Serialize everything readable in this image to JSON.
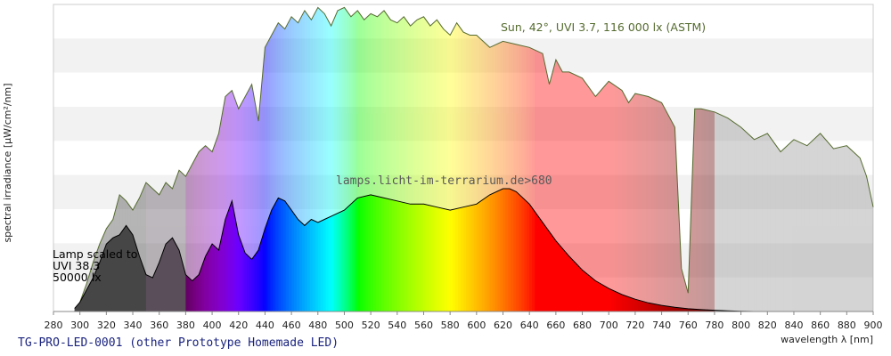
{
  "chart_data": {
    "type": "area",
    "title": "TG-PRO-LED-0001 (other Prototype Homemade LED)",
    "xlabel": "wavelength λ [nm]",
    "ylabel": "spectral irradiance [µW/cm²/nm]",
    "xlim": [
      280,
      900
    ],
    "ylim": [
      0,
      1
    ],
    "x_ticks": [
      280,
      300,
      320,
      340,
      360,
      380,
      400,
      420,
      440,
      460,
      480,
      500,
      520,
      540,
      560,
      580,
      600,
      620,
      640,
      660,
      680,
      700,
      720,
      740,
      760,
      780,
      800,
      820,
      840,
      860,
      880,
      900
    ],
    "grid": "horizontal bands",
    "annotations": {
      "sun": "Sun, 42°, UVI 3.7, 116 000 lx (ASTM)",
      "source": "lamps.licht-im-terrarium.de>680",
      "lamp_line1": "Lamp scaled to",
      "lamp_line2": "UVI 38.3",
      "lamp_line3": "50000 lx"
    },
    "series": [
      {
        "name": "Sun, 42°, UVI 3.7, 116 000 lx (ASTM)",
        "x": [
          296,
          300,
          305,
          310,
          315,
          320,
          325,
          330,
          335,
          340,
          345,
          350,
          355,
          360,
          365,
          370,
          375,
          380,
          385,
          390,
          395,
          400,
          405,
          410,
          415,
          420,
          425,
          430,
          435,
          440,
          445,
          450,
          455,
          460,
          465,
          470,
          475,
          480,
          485,
          490,
          495,
          500,
          505,
          510,
          515,
          520,
          525,
          530,
          535,
          540,
          545,
          550,
          555,
          560,
          565,
          570,
          575,
          580,
          585,
          590,
          595,
          600,
          610,
          620,
          630,
          640,
          650,
          655,
          660,
          665,
          670,
          680,
          690,
          700,
          710,
          715,
          720,
          730,
          740,
          750,
          755,
          760,
          763,
          765,
          770,
          780,
          790,
          800,
          810,
          820,
          830,
          840,
          850,
          860,
          870,
          880,
          890,
          895,
          900
        ],
        "values": [
          0,
          0.03,
          0.09,
          0.16,
          0.22,
          0.27,
          0.3,
          0.38,
          0.36,
          0.33,
          0.37,
          0.42,
          0.4,
          0.38,
          0.42,
          0.4,
          0.46,
          0.44,
          0.48,
          0.52,
          0.54,
          0.52,
          0.58,
          0.7,
          0.72,
          0.66,
          0.7,
          0.74,
          0.62,
          0.86,
          0.9,
          0.94,
          0.92,
          0.96,
          0.94,
          0.98,
          0.95,
          0.99,
          0.97,
          0.93,
          0.98,
          0.99,
          0.96,
          0.98,
          0.95,
          0.97,
          0.96,
          0.98,
          0.95,
          0.94,
          0.96,
          0.93,
          0.95,
          0.96,
          0.93,
          0.95,
          0.92,
          0.9,
          0.94,
          0.91,
          0.9,
          0.9,
          0.86,
          0.88,
          0.87,
          0.86,
          0.84,
          0.74,
          0.82,
          0.78,
          0.78,
          0.76,
          0.7,
          0.75,
          0.72,
          0.68,
          0.71,
          0.7,
          0.68,
          0.6,
          0.14,
          0.06,
          0.42,
          0.66,
          0.66,
          0.65,
          0.63,
          0.6,
          0.56,
          0.58,
          0.52,
          0.56,
          0.54,
          0.58,
          0.53,
          0.54,
          0.5,
          0.44,
          0.34
        ]
      },
      {
        "name": "Lamp",
        "x": [
          296,
          300,
          305,
          310,
          315,
          320,
          325,
          330,
          335,
          340,
          345,
          350,
          355,
          360,
          365,
          370,
          375,
          380,
          385,
          390,
          395,
          400,
          405,
          410,
          415,
          420,
          425,
          430,
          435,
          440,
          445,
          450,
          455,
          460,
          465,
          470,
          475,
          480,
          485,
          490,
          495,
          500,
          510,
          520,
          530,
          540,
          550,
          560,
          570,
          580,
          590,
          600,
          610,
          620,
          625,
          630,
          640,
          650,
          660,
          670,
          680,
          690,
          700,
          710,
          720,
          730,
          740,
          750,
          760,
          770,
          780,
          790,
          800,
          810
        ],
        "values": [
          0.01,
          0.03,
          0.07,
          0.11,
          0.16,
          0.22,
          0.24,
          0.25,
          0.28,
          0.25,
          0.18,
          0.12,
          0.11,
          0.16,
          0.22,
          0.24,
          0.2,
          0.12,
          0.1,
          0.12,
          0.18,
          0.22,
          0.2,
          0.3,
          0.36,
          0.25,
          0.19,
          0.17,
          0.2,
          0.27,
          0.33,
          0.37,
          0.36,
          0.33,
          0.3,
          0.28,
          0.3,
          0.29,
          0.3,
          0.31,
          0.32,
          0.33,
          0.37,
          0.38,
          0.37,
          0.36,
          0.35,
          0.35,
          0.34,
          0.33,
          0.34,
          0.35,
          0.38,
          0.4,
          0.4,
          0.39,
          0.35,
          0.29,
          0.23,
          0.18,
          0.135,
          0.1,
          0.075,
          0.055,
          0.04,
          0.028,
          0.02,
          0.014,
          0.009,
          0.006,
          0.004,
          0.002,
          0.001,
          0
        ]
      }
    ]
  },
  "colors": {
    "background_band": "#f2f2f2",
    "sun_outline": "#556b2f",
    "lamp_outline": "#000000",
    "footer_text": "#1a237e"
  }
}
